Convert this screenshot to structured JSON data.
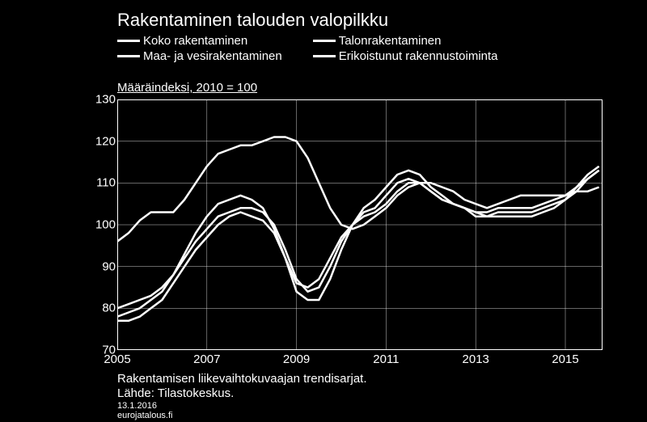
{
  "title": "Rakentaminen talouden valopilkku",
  "subtitle": "Määräindeksi, 2010 = 100",
  "legend": [
    {
      "swatch_width": 28,
      "label": "Koko rakentaminen"
    },
    {
      "swatch_width": 28,
      "label": "Talonrakentaminen"
    },
    {
      "swatch_width": 28,
      "label": "Maa- ja vesirakentaminen"
    },
    {
      "swatch_width": 28,
      "label": "Erikoistunut rakennustoiminta"
    }
  ],
  "footnote1": "Rakentamisen liikevaihtokuvaajan trendisarjat.",
  "footnote2": "Lähde: Tilastokeskus.",
  "date": "13.1.2016",
  "site": "eurojatalous.fi",
  "chart": {
    "type": "line",
    "background": "#000000",
    "line_color": "#ffffff",
    "line_width": 2.5,
    "grid_color": "#ffffff",
    "grid_width": 0.4,
    "ylim": [
      70,
      130
    ],
    "yticks": [
      70,
      80,
      90,
      100,
      110,
      120,
      130
    ],
    "xlim": [
      2005,
      2015.83
    ],
    "xticks": [
      2005,
      2007,
      2009,
      2011,
      2013,
      2015
    ],
    "tick_fontsize": 15,
    "series": {
      "koko": {
        "x": [
          2005,
          2005.25,
          2005.5,
          2005.75,
          2006,
          2006.25,
          2006.5,
          2006.75,
          2007,
          2007.25,
          2007.5,
          2007.75,
          2008,
          2008.25,
          2008.5,
          2008.75,
          2009,
          2009.25,
          2009.5,
          2009.75,
          2010,
          2010.25,
          2010.5,
          2010.75,
          2011,
          2011.25,
          2011.5,
          2011.75,
          2012,
          2012.25,
          2012.5,
          2012.75,
          2013,
          2013.25,
          2013.5,
          2013.75,
          2014,
          2014.25,
          2014.5,
          2014.75,
          2015,
          2015.25,
          2015.5,
          2015.75
        ],
        "y": [
          80,
          81,
          82,
          83,
          85,
          88,
          92,
          96,
          99,
          102,
          103,
          104,
          104,
          103,
          100,
          94,
          87,
          84,
          85,
          90,
          96,
          100,
          103,
          104,
          107,
          110,
          111,
          110,
          108,
          106,
          105,
          104,
          103,
          103,
          104,
          104,
          104,
          104,
          105,
          106,
          107,
          109,
          111,
          113
        ]
      },
      "talon": {
        "x": [
          2005,
          2005.25,
          2005.5,
          2005.75,
          2006,
          2006.25,
          2006.5,
          2006.75,
          2007,
          2007.25,
          2007.5,
          2007.75,
          2008,
          2008.25,
          2008.5,
          2008.75,
          2009,
          2009.25,
          2009.5,
          2009.75,
          2010,
          2010.25,
          2010.5,
          2010.75,
          2011,
          2011.25,
          2011.5,
          2011.75,
          2012,
          2012.25,
          2012.5,
          2012.75,
          2013,
          2013.25,
          2013.5,
          2013.75,
          2014,
          2014.25,
          2014.5,
          2014.75,
          2015,
          2015.25,
          2015.5,
          2015.75
        ],
        "y": [
          78,
          79,
          80,
          82,
          84,
          88,
          93,
          98,
          102,
          105,
          106,
          107,
          106,
          104,
          99,
          92,
          84,
          82,
          82,
          87,
          94,
          100,
          104,
          106,
          109,
          112,
          113,
          112,
          109,
          107,
          105,
          104,
          103,
          102,
          103,
          103,
          103,
          103,
          104,
          105,
          106,
          109,
          112,
          114
        ]
      },
      "maa": {
        "x": [
          2005,
          2005.25,
          2005.5,
          2005.75,
          2006,
          2006.25,
          2006.5,
          2006.75,
          2007,
          2007.25,
          2007.5,
          2007.75,
          2008,
          2008.25,
          2008.5,
          2008.75,
          2009,
          2009.25,
          2009.5,
          2009.75,
          2010,
          2010.25,
          2010.5,
          2010.75,
          2011,
          2011.25,
          2011.5,
          2011.75,
          2012,
          2012.25,
          2012.5,
          2012.75,
          2013,
          2013.25,
          2013.5,
          2013.75,
          2014,
          2014.25,
          2014.5,
          2014.75,
          2015,
          2015.25,
          2015.5,
          2015.75
        ],
        "y": [
          96,
          98,
          101,
          103,
          103,
          103,
          106,
          110,
          114,
          117,
          118,
          119,
          119,
          120,
          121,
          121,
          120,
          116,
          110,
          104,
          100,
          99,
          100,
          102,
          104,
          107,
          109,
          110,
          110,
          109,
          108,
          106,
          105,
          104,
          105,
          106,
          107,
          107,
          107,
          107,
          107,
          108,
          108,
          109
        ]
      },
      "erikoistunut": {
        "x": [
          2005,
          2005.25,
          2005.5,
          2005.75,
          2006,
          2006.25,
          2006.5,
          2006.75,
          2007,
          2007.25,
          2007.5,
          2007.75,
          2008,
          2008.25,
          2008.5,
          2008.75,
          2009,
          2009.25,
          2009.5,
          2009.75,
          2010,
          2010.25,
          2010.5,
          2010.75,
          2011,
          2011.25,
          2011.5,
          2011.75,
          2012,
          2012.25,
          2012.5,
          2012.75,
          2013,
          2013.25,
          2013.5,
          2013.75,
          2014,
          2014.25,
          2014.5,
          2014.75,
          2015,
          2015.25,
          2015.5,
          2015.75
        ],
        "y": [
          77,
          77,
          78,
          80,
          82,
          86,
          90,
          94,
          97,
          100,
          102,
          103,
          102,
          101,
          98,
          92,
          86,
          85,
          87,
          92,
          97,
          100,
          102,
          103,
          105,
          108,
          110,
          110,
          108,
          106,
          105,
          104,
          102,
          102,
          102,
          102,
          102,
          102,
          103,
          104,
          106,
          108,
          111,
          113
        ]
      }
    }
  }
}
